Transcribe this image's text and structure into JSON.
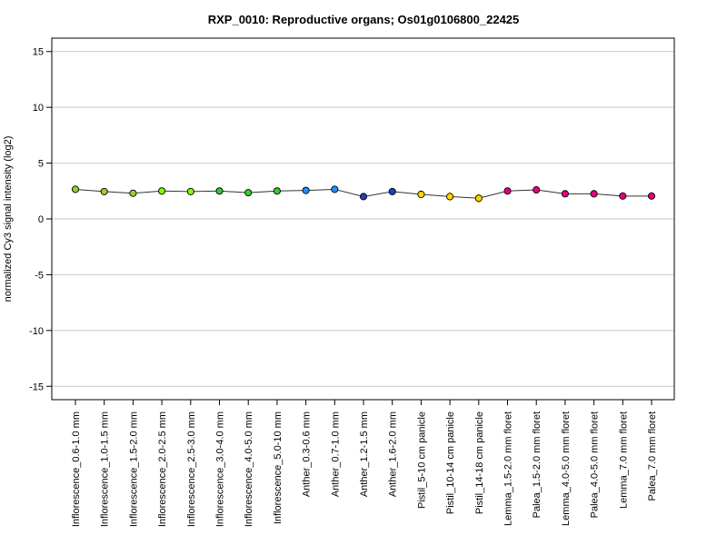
{
  "chart_data": {
    "type": "line",
    "title": "RXP_0010: Reproductive organs; Os01g0106800_22425",
    "xlabel": "",
    "ylabel": "normalized Cy3 signal intensity (log2)",
    "ylim": [
      -16.2,
      16.2
    ],
    "yticks": [
      -15,
      -10,
      -5,
      0,
      5,
      10,
      15
    ],
    "grid": true,
    "categories": [
      "Inflorescence_0.6-1.0 mm",
      "Inflorescence_1.0-1.5 mm",
      "Inflorescence_1.5-2.0 mm",
      "Inflorescence_2.0-2.5 mm",
      "Inflorescence_2.5-3.0 mm",
      "Inflorescence_3.0-4.0 mm",
      "Inflorescence_4.0-5.0 mm",
      "Inflorescence_5.0-10 mm",
      "Anther_0.3-0.6 mm",
      "Anther_0.7-1.0 mm",
      "Anther_1.2-1.5 mm",
      "Anther_1.6-2.0 mm",
      "Pistil_5-10 cm panicle",
      "Pistil_10-14 cm panicle",
      "Pistil_14-18 cm panicle",
      "Lemma_1.5-2.0 mm floret",
      "Palea_1.5-2.0 mm floret",
      "Lemma_4.0-5.0 mm floret",
      "Palea_4.0-5.0 mm floret",
      "Lemma_7.0 mm floret",
      "Palea_7.0 mm floret"
    ],
    "values": [
      2.65,
      2.45,
      2.3,
      2.5,
      2.45,
      2.5,
      2.35,
      2.5,
      2.55,
      2.65,
      2.0,
      2.45,
      2.2,
      2.0,
      1.85,
      2.5,
      2.6,
      2.25,
      2.25,
      2.05,
      2.05
    ],
    "errors": [
      0.15,
      0.1,
      0.1,
      0.05,
      0.05,
      0.05,
      0.05,
      0.05,
      0.1,
      0.05,
      0.25,
      0.1,
      0.15,
      0.45,
      0.45,
      0.1,
      0.1,
      0.1,
      0.1,
      0.05,
      0.15
    ],
    "colors": [
      "#9acd32",
      "#9acd32",
      "#9acd32",
      "#7fff00",
      "#7fff00",
      "#32cd32",
      "#32cd32",
      "#32cd32",
      "#1e90ff",
      "#1e90ff",
      "#1f3fbf",
      "#1f3fbf",
      "#ffd700",
      "#ffd700",
      "#ffd700",
      "#e6007e",
      "#e6007e",
      "#e6007e",
      "#e6007e",
      "#e6007e",
      "#e6007e"
    ],
    "line_color": "#333333",
    "grid_color": "#c8c8c8"
  }
}
